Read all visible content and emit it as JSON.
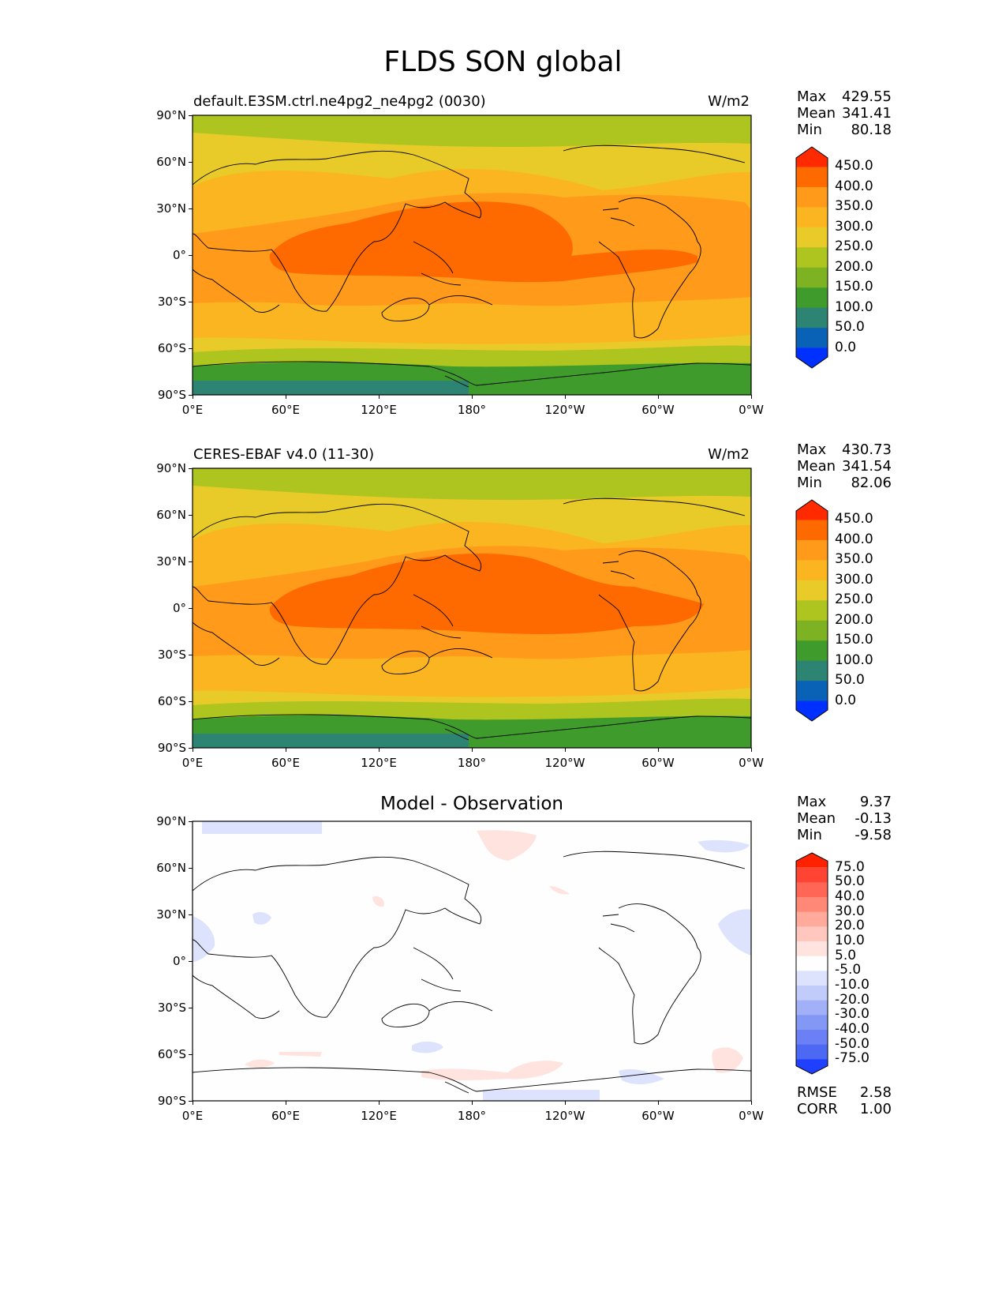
{
  "figure_title": "FLDS SON global",
  "lat_ticks": [
    "90°N",
    "60°N",
    "30°N",
    "0°",
    "30°S",
    "60°S",
    "90°S"
  ],
  "lon_ticks": [
    "0°E",
    "60°E",
    "120°E",
    "180°",
    "120°W",
    "60°W",
    "0°W"
  ],
  "panels": [
    {
      "label": "default.E3SM.ctrl.ne4pg2_ne4pg2 (0030)",
      "units": "W/m2",
      "stats": {
        "max_label": "Max",
        "max": "429.55",
        "mean_label": "Mean",
        "mean": "341.41",
        "min_label": "Min",
        "min": "80.18"
      }
    },
    {
      "label": "CERES-EBAF v4.0 (11-30)",
      "units": "W/m2",
      "stats": {
        "max_label": "Max",
        "max": "430.73",
        "mean_label": "Mean",
        "mean": "341.54",
        "min_label": "Min",
        "min": "82.06"
      }
    },
    {
      "title": "Model - Observation",
      "stats": {
        "max_label": "Max",
        "max": "9.37",
        "mean_label": "Mean",
        "mean": "-0.13",
        "min_label": "Min",
        "min": "-9.58"
      },
      "metrics": {
        "rmse_label": "RMSE",
        "rmse": "2.58",
        "corr_label": "CORR",
        "corr": "1.00"
      }
    }
  ],
  "colorbars": {
    "main": {
      "labels": [
        "450.0",
        "400.0",
        "350.0",
        "300.0",
        "250.0",
        "200.0",
        "150.0",
        "100.0",
        "50.0",
        "0.0"
      ],
      "colors": [
        "#ff2a00",
        "#ff6a00",
        "#ff9a1a",
        "#fbb521",
        "#e8cb29",
        "#aec41f",
        "#7db223",
        "#3f9b2b",
        "#2e8472",
        "#0a62b6",
        "#0030ff"
      ]
    },
    "diff": {
      "labels": [
        "75.0",
        "50.0",
        "40.0",
        "30.0",
        "20.0",
        "10.0",
        "5.0",
        "-5.0",
        "-10.0",
        "-20.0",
        "-30.0",
        "-40.0",
        "-50.0",
        "-75.0"
      ],
      "colors": [
        "#ff2200",
        "#ff4433",
        "#ff6655",
        "#ff8877",
        "#ffaa9a",
        "#ffc7bd",
        "#ffe3de",
        "#fefefe",
        "#dde3fc",
        "#c2ccfa",
        "#a2b1f7",
        "#8398f5",
        "#6a80f4",
        "#4d68f3",
        "#2040ff"
      ]
    }
  },
  "chart_data": [
    {
      "type": "heatmap",
      "title": "default.E3SM.ctrl.ne4pg2_ne4pg2 (0030)",
      "units": "W/m2",
      "xlim": [
        0,
        360
      ],
      "ylim": [
        -90,
        90
      ],
      "levels": [
        0,
        50,
        100,
        150,
        200,
        250,
        300,
        350,
        400,
        450
      ],
      "max": 429.55,
      "mean": 341.41,
      "min": 80.18
    },
    {
      "type": "heatmap",
      "title": "CERES-EBAF v4.0 (11-30)",
      "units": "W/m2",
      "xlim": [
        0,
        360
      ],
      "ylim": [
        -90,
        90
      ],
      "levels": [
        0,
        50,
        100,
        150,
        200,
        250,
        300,
        350,
        400,
        450
      ],
      "max": 430.73,
      "mean": 341.54,
      "min": 82.06
    },
    {
      "type": "heatmap",
      "title": "Model - Observation",
      "xlim": [
        0,
        360
      ],
      "ylim": [
        -90,
        90
      ],
      "levels": [
        -75,
        -50,
        -40,
        -30,
        -20,
        -10,
        -5,
        5,
        10,
        20,
        30,
        40,
        50,
        75
      ],
      "max": 9.37,
      "mean": -0.13,
      "min": -9.58,
      "rmse": 2.58,
      "corr": 1.0
    }
  ]
}
